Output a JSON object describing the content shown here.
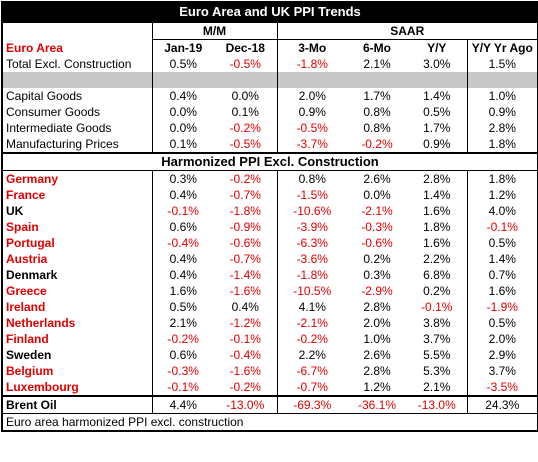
{
  "title": "Euro Area and UK PPI Trends",
  "group_headers": [
    "M/M",
    "SAAR"
  ],
  "columns": [
    "Euro Area",
    "Jan-19",
    "Dec-18",
    "3-Mo",
    "6-Mo",
    "Y/Y",
    "Y/Y Yr Ago"
  ],
  "header_color": "#e00000",
  "total": {
    "label": "Total Excl. Construction",
    "values": [
      "0.5%",
      "-0.5%",
      "-1.8%",
      "2.1%",
      "3.0%",
      "1.5%"
    ]
  },
  "rows": [
    {
      "label": "Capital Goods",
      "values": [
        "0.4%",
        "0.0%",
        "2.0%",
        "1.7%",
        "1.4%",
        "1.0%"
      ]
    },
    {
      "label": "Consumer Goods",
      "values": [
        "0.0%",
        "0.1%",
        "0.9%",
        "0.8%",
        "0.5%",
        "0.9%"
      ]
    },
    {
      "label": "Intermediate Goods",
      "values": [
        "0.0%",
        "-0.2%",
        "-0.5%",
        "0.8%",
        "1.7%",
        "2.8%"
      ]
    },
    {
      "label": "Manufacturing Prices",
      "values": [
        "0.1%",
        "-0.5%",
        "-3.7%",
        "-0.2%",
        "0.9%",
        "1.8%"
      ]
    }
  ],
  "section_title": "Harmonized PPI Excl. Construction",
  "countries": [
    {
      "label": "Germany",
      "color": "#e00000",
      "values": [
        "0.3%",
        "-0.2%",
        "0.8%",
        "2.6%",
        "2.8%",
        "1.8%"
      ]
    },
    {
      "label": "France",
      "color": "#e00000",
      "values": [
        "0.4%",
        "-0.7%",
        "-1.5%",
        "0.0%",
        "1.4%",
        "1.2%"
      ]
    },
    {
      "label": "UK",
      "color": "#000000",
      "values": [
        "-0.1%",
        "-1.8%",
        "-10.6%",
        "-2.1%",
        "1.6%",
        "4.0%"
      ]
    },
    {
      "label": "Spain",
      "color": "#e00000",
      "values": [
        "0.6%",
        "-0.9%",
        "-3.9%",
        "-0.3%",
        "1.8%",
        "-0.1%"
      ]
    },
    {
      "label": "Portugal",
      "color": "#e00000",
      "values": [
        "-0.4%",
        "-0.6%",
        "-6.3%",
        "-0.6%",
        "1.6%",
        "0.5%"
      ]
    },
    {
      "label": "Austria",
      "color": "#e00000",
      "values": [
        "0.4%",
        "-0.7%",
        "-3.6%",
        "0.2%",
        "2.2%",
        "1.4%"
      ]
    },
    {
      "label": "Denmark",
      "color": "#000000",
      "values": [
        "0.4%",
        "-1.4%",
        "-1.8%",
        "0.3%",
        "6.8%",
        "0.7%"
      ]
    },
    {
      "label": "Greece",
      "color": "#e00000",
      "values": [
        "1.6%",
        "-1.6%",
        "-10.5%",
        "-2.9%",
        "0.2%",
        "1.6%"
      ]
    },
    {
      "label": "Ireland",
      "color": "#e00000",
      "values": [
        "0.5%",
        "0.4%",
        "4.1%",
        "2.8%",
        "-0.1%",
        "-1.9%"
      ]
    },
    {
      "label": "Netherlands",
      "color": "#e00000",
      "values": [
        "2.1%",
        "-1.2%",
        "-2.1%",
        "2.0%",
        "3.8%",
        "0.5%"
      ]
    },
    {
      "label": "Finland",
      "color": "#e00000",
      "values": [
        "-0.2%",
        "-0.1%",
        "-0.2%",
        "1.0%",
        "3.7%",
        "2.0%"
      ]
    },
    {
      "label": "Sweden",
      "color": "#000000",
      "values": [
        "0.6%",
        "-0.4%",
        "2.2%",
        "2.6%",
        "5.5%",
        "2.9%"
      ]
    },
    {
      "label": "Belgium",
      "color": "#e00000",
      "values": [
        "-0.3%",
        "-1.6%",
        "-6.7%",
        "2.8%",
        "5.3%",
        "3.7%"
      ]
    },
    {
      "label": "Luxembourg",
      "color": "#e00000",
      "values": [
        "-0.1%",
        "-0.2%",
        "-0.7%",
        "1.2%",
        "2.1%",
        "-3.5%"
      ]
    }
  ],
  "oil": {
    "label": "Brent Oil",
    "values": [
      "4.4%",
      "-13.0%",
      "-69.3%",
      "-36.1%",
      "-13.0%",
      "24.3%"
    ]
  },
  "footer": "Euro area harmonized PPI excl. construction"
}
